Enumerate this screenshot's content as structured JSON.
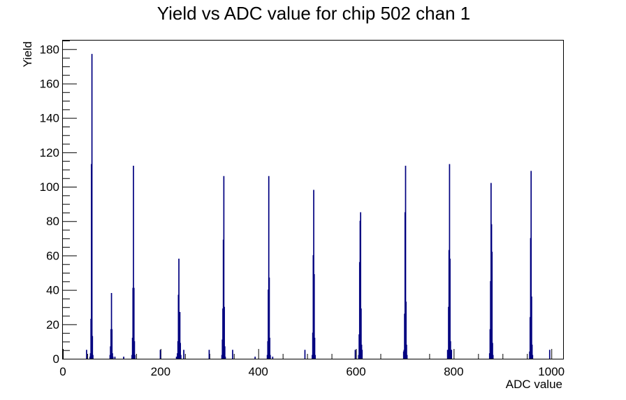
{
  "chart_data": {
    "type": "bar",
    "title": "Yield vs ADC value for chip 502 chan 1",
    "xlabel": "ADC value",
    "ylabel": "Yield",
    "xlim": [
      0,
      1024
    ],
    "ylim": [
      0,
      185
    ],
    "x_ticks": [
      0,
      200,
      400,
      600,
      800,
      1000
    ],
    "x_tick_labels": [
      "0",
      "200",
      "400",
      "600",
      "800",
      "1000"
    ],
    "y_ticks": [
      0,
      20,
      40,
      60,
      80,
      100,
      120,
      140,
      160,
      180
    ],
    "y_tick_labels": [
      "0",
      "20",
      "40",
      "60",
      "80",
      "100",
      "120",
      "140",
      "160",
      "180"
    ],
    "grid": false,
    "legend": "none",
    "line_color": "#000080",
    "bin_width": 1,
    "bins": [
      [
        48,
        5
      ],
      [
        55,
        1
      ],
      [
        56,
        3
      ],
      [
        57,
        23
      ],
      [
        58,
        113
      ],
      [
        59,
        177
      ],
      [
        60,
        13
      ],
      [
        61,
        2
      ],
      [
        96,
        2
      ],
      [
        97,
        7
      ],
      [
        98,
        17
      ],
      [
        99,
        38
      ],
      [
        100,
        17
      ],
      [
        101,
        3
      ],
      [
        102,
        1
      ],
      [
        106,
        1
      ],
      [
        124,
        1
      ],
      [
        141,
        2
      ],
      [
        142,
        12
      ],
      [
        143,
        41
      ],
      [
        144,
        112
      ],
      [
        145,
        41
      ],
      [
        146,
        10
      ],
      [
        147,
        2
      ],
      [
        199,
        5
      ],
      [
        232,
        1
      ],
      [
        234,
        3
      ],
      [
        235,
        10
      ],
      [
        236,
        37
      ],
      [
        237,
        58
      ],
      [
        238,
        17
      ],
      [
        239,
        27
      ],
      [
        240,
        9
      ],
      [
        241,
        2
      ],
      [
        247,
        5
      ],
      [
        299,
        5
      ],
      [
        325,
        2
      ],
      [
        326,
        11
      ],
      [
        327,
        29
      ],
      [
        328,
        69
      ],
      [
        329,
        106
      ],
      [
        330,
        30
      ],
      [
        331,
        7
      ],
      [
        332,
        1
      ],
      [
        347,
        5
      ],
      [
        393,
        1
      ],
      [
        418,
        2
      ],
      [
        419,
        10
      ],
      [
        420,
        40
      ],
      [
        421,
        106
      ],
      [
        422,
        47
      ],
      [
        423,
        12
      ],
      [
        424,
        2
      ],
      [
        429,
        1
      ],
      [
        495,
        5
      ],
      [
        510,
        2
      ],
      [
        511,
        15
      ],
      [
        512,
        60
      ],
      [
        513,
        98
      ],
      [
        514,
        49
      ],
      [
        515,
        12
      ],
      [
        516,
        2
      ],
      [
        598,
        5
      ],
      [
        605,
        2
      ],
      [
        606,
        14
      ],
      [
        607,
        56
      ],
      [
        608,
        80
      ],
      [
        609,
        85
      ],
      [
        610,
        29
      ],
      [
        611,
        8
      ],
      [
        612,
        5
      ],
      [
        697,
        4
      ],
      [
        698,
        5
      ],
      [
        699,
        26
      ],
      [
        700,
        85
      ],
      [
        701,
        112
      ],
      [
        702,
        33
      ],
      [
        703,
        8
      ],
      [
        704,
        2
      ],
      [
        787,
        5
      ],
      [
        788,
        2
      ],
      [
        789,
        30
      ],
      [
        790,
        63
      ],
      [
        791,
        113
      ],
      [
        792,
        58
      ],
      [
        793,
        10
      ],
      [
        794,
        2
      ],
      [
        795,
        5
      ],
      [
        873,
        3
      ],
      [
        874,
        17
      ],
      [
        875,
        45
      ],
      [
        876,
        102
      ],
      [
        877,
        78
      ],
      [
        878,
        62
      ],
      [
        879,
        9
      ],
      [
        880,
        2
      ],
      [
        955,
        4
      ],
      [
        956,
        24
      ],
      [
        957,
        70
      ],
      [
        958,
        109
      ],
      [
        959,
        36
      ],
      [
        960,
        8
      ],
      [
        961,
        2
      ],
      [
        996,
        5
      ]
    ]
  }
}
